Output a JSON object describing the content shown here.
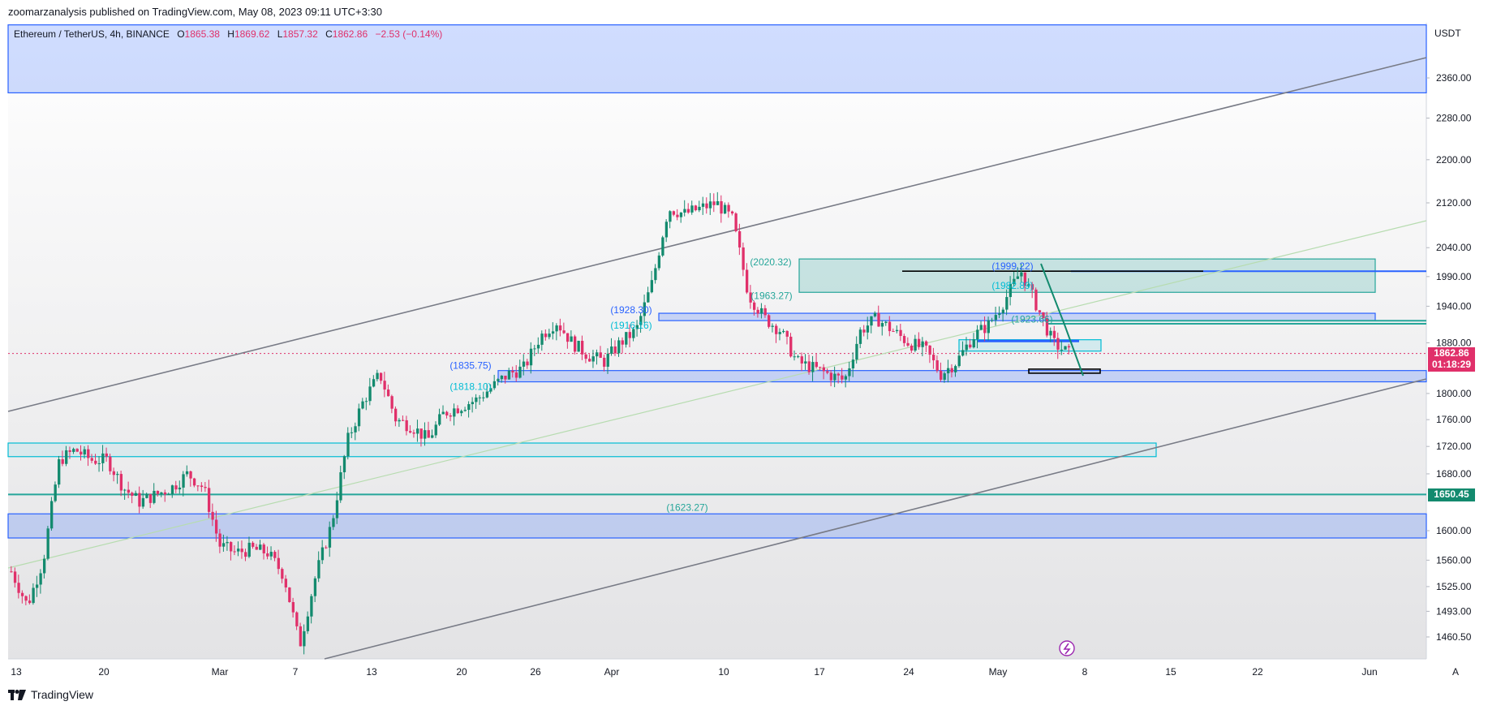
{
  "header": {
    "publisher_line": "zoomarzanalysis published on TradingView.com, May 08, 2023 09:11 UTC+3:30"
  },
  "legend": {
    "symbol": "Ethereum / TetherUS, 4h, BINANCE",
    "open_label": "O",
    "open": "1865.38",
    "high_label": "H",
    "high": "1869.62",
    "low_label": "L",
    "low": "1857.32",
    "close_label": "C",
    "close": "1862.86",
    "change": "−2.53 (−0.14%)"
  },
  "price_unit": "USDT",
  "current_price_badge": {
    "price": "1862.86",
    "countdown": "01:18:29",
    "color": "#e0306a"
  },
  "level_badge": {
    "price": "1650.45",
    "color": "#138a6e"
  },
  "footer": {
    "brand": "TradingView"
  },
  "colors": {
    "up": "#138a6e",
    "down": "#e0306a",
    "zone_blue": "#2962ff",
    "zone_cyan": "#00bcd4",
    "zone_green": "#26a69a",
    "channel": "#787b86"
  },
  "chart_data": {
    "type": "candlestick",
    "title": "Ethereum / TetherUS, 4h, BINANCE",
    "y_unit": "USDT",
    "y_ticks": [
      "2360.00",
      "2280.00",
      "2200.00",
      "2120.00",
      "2040.00",
      "1990.00",
      "1940.00",
      "1880.00",
      "1800.00",
      "1760.00",
      "1720.00",
      "1680.00",
      "1600.00",
      "1560.00",
      "1525.00",
      "1493.00",
      "1460.50"
    ],
    "x_ticks": [
      "13",
      "20",
      "Mar",
      "7",
      "13",
      "20",
      "26",
      "Apr",
      "10",
      "17",
      "24",
      "May",
      "8",
      "15",
      "22",
      "Jun",
      "A"
    ],
    "price_path": [
      1545,
      1500,
      1560,
      1700,
      1715,
      1700,
      1700,
      1660,
      1640,
      1650,
      1660,
      1680,
      1660,
      1580,
      1570,
      1575,
      1570,
      1540,
      1450,
      1540,
      1610,
      1730,
      1790,
      1830,
      1760,
      1750,
      1730,
      1770,
      1780,
      1790,
      1810,
      1830,
      1840,
      1890,
      1915,
      1880,
      1860,
      1850,
      1880,
      1900,
      1980,
      2110,
      2100,
      2110,
      2120,
      2090,
      1960,
      1920,
      1900,
      1850,
      1840,
      1830,
      1820,
      1900,
      1920,
      1900,
      1880,
      1870,
      1830,
      1850,
      1890,
      1910,
      1950,
      2000,
      1940,
      1880,
      1862.86
    ],
    "annotations": [
      {
        "text": "(2020.32)",
        "price": 2020.32,
        "color": "green"
      },
      {
        "text": "(1963.27)",
        "price": 1963.27,
        "color": "green"
      },
      {
        "text": "(1928.30)",
        "price": 1928.3,
        "color": "blue"
      },
      {
        "text": "(1916.16)",
        "price": 1916.16,
        "color": "cyan"
      },
      {
        "text": "(1835.75)",
        "price": 1835.75,
        "color": "blue"
      },
      {
        "text": "(1818.10)",
        "price": 1818.1,
        "color": "cyan"
      },
      {
        "text": "(1999.22)",
        "price": 1999.22,
        "color": "blue"
      },
      {
        "text": "(1982.89)",
        "price": 1982.89,
        "color": "cyan"
      },
      {
        "text": "(1923.66)",
        "price": 1923.66,
        "color": "green"
      },
      {
        "text": "(1623.27)",
        "price": 1623.27,
        "color": "green"
      }
    ],
    "zones": [
      {
        "name": "top-zone",
        "from": 2330,
        "to": 2470,
        "color": "blue"
      },
      {
        "name": "supply-zone",
        "from": 1963.27,
        "to": 2020.32,
        "color": "green"
      },
      {
        "name": "resistance-1916",
        "from": 1916.16,
        "to": 1928.3,
        "color": "blue"
      },
      {
        "name": "support-1818",
        "from": 1818.1,
        "to": 1835.75,
        "color": "blue"
      },
      {
        "name": "zone-1720",
        "from": 1705,
        "to": 1725,
        "color": "cyan"
      },
      {
        "name": "zone-1600",
        "from": 1590,
        "to": 1623.27,
        "color": "blue"
      }
    ],
    "current_price": 1862.86,
    "horizontal_level": 1650.45
  }
}
